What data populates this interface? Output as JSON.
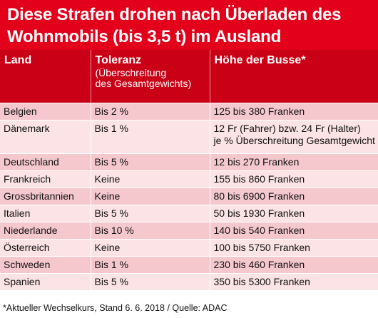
{
  "headline": {
    "line1": "Diese Strafen drohen nach Überladen des",
    "line2": "Wohnmobils (bis 3,5 t) im Ausland"
  },
  "table": {
    "headers": {
      "land": "Land",
      "toleranz": "Toleranz",
      "toleranz_sub1": "(Überschreitung",
      "toleranz_sub2": "des Gesamtgewichts)",
      "busse": "Höhe der Busse*"
    },
    "rows": [
      {
        "land": "Belgien",
        "toleranz": "Bis 2 %",
        "busse": "125 bis 380 Franken"
      },
      {
        "land": "Dänemark",
        "toleranz": "Bis 1 %",
        "busse": "12 Fr (Fahrer) bzw. 24 Fr (Halter)",
        "busse2": "je % Überschreitung Gesamtgewicht"
      },
      {
        "land": "Deutschland",
        "toleranz": "Bis 5 %",
        "busse": "12 bis 270 Franken"
      },
      {
        "land": "Frankreich",
        "toleranz": "Keine",
        "busse": "155 bis 860 Franken"
      },
      {
        "land": "Grossbritannien",
        "toleranz": "Keine",
        "busse": "80 bis 6900 Franken"
      },
      {
        "land": "Italien",
        "toleranz": "Bis 5 %",
        "busse": "50 bis 1930 Franken"
      },
      {
        "land": "Niederlande",
        "toleranz": "Bis 10 %",
        "busse": "140 bis 540 Franken"
      },
      {
        "land": "Österreich",
        "toleranz": "Keine",
        "busse": "100 bis 5750 Franken"
      },
      {
        "land": "Schweden",
        "toleranz": "Bis 1 %",
        "busse": "230 bis 460 Franken"
      },
      {
        "land": "Spanien",
        "toleranz": "Bis 5 %",
        "busse": "350 bis 5300 Franken"
      }
    ]
  },
  "footnote": "*Aktueller Wechselkurs, Stand 6. 6. 2018 / Quelle: ADAC",
  "colors": {
    "headline_bg": "#e2001a",
    "header_bg": "#c90016",
    "row_odd": "#f5c8cd",
    "row_even": "#fbe3e6"
  }
}
